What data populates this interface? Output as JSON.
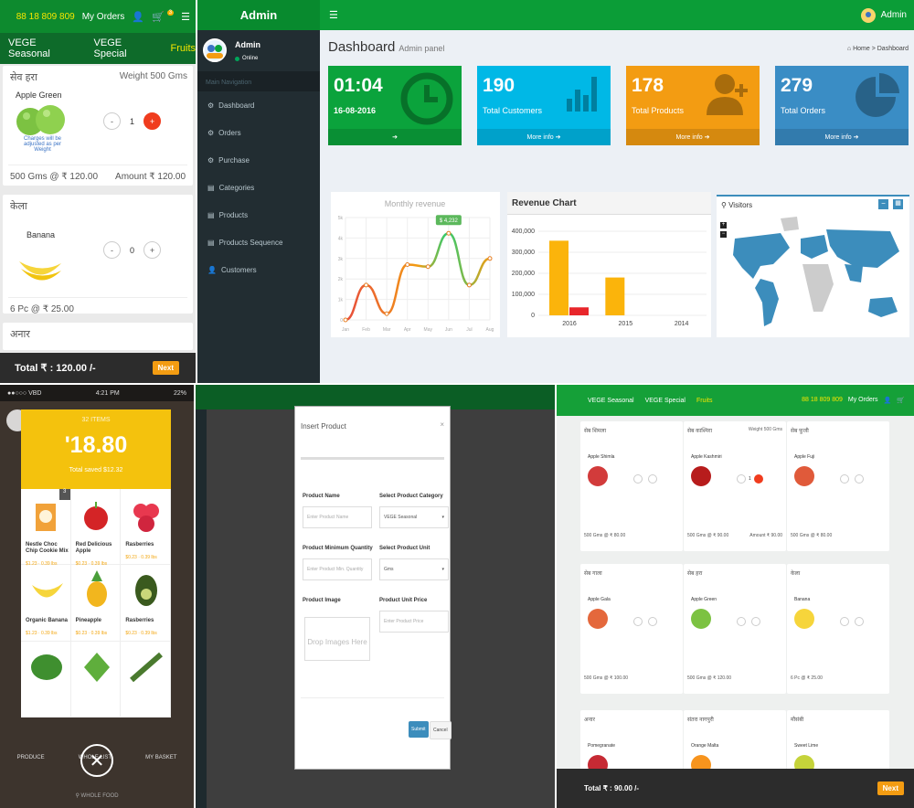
{
  "shop": {
    "phone": "88 18 809 809",
    "my_orders": "My Orders",
    "cart_badge": "3",
    "categories": [
      "VEGE Seasonal",
      "VEGE Special",
      "Fruits"
    ],
    "cards": [
      {
        "name": "सेव हरा",
        "weight": "Weight 500 Gms",
        "product": "Apple Green",
        "note": "Charges will be adjusted as per Weight",
        "qty": "1",
        "price_line": "500 Gms @ ₹ 120.00",
        "amount": "Amount ₹ 120.00"
      },
      {
        "name": "केला",
        "product": "Banana",
        "qty": "0",
        "price_line": "6 Pc @ ₹ 25.00"
      },
      {
        "name": "अनार"
      }
    ],
    "total": "Total ₹ : 120.00 /-",
    "next": "Next"
  },
  "admin": {
    "brand": "Admin",
    "username": "Admin",
    "online": "Online",
    "nav_header": "Main Navigation",
    "nav": [
      "Dashboard",
      "Orders",
      "Purchase",
      "Categories",
      "Products",
      "Products Sequence",
      "Customers"
    ],
    "title": "Dashboard",
    "subtitle": "Admin panel",
    "breadcrumb": "Home > Dashboard",
    "boxes": [
      {
        "value": "01:04",
        "label": "16-08-2016",
        "footer": "➔",
        "color": "#0ba33c"
      },
      {
        "value": "190",
        "label": "Total Customers",
        "footer": "More info ➔",
        "color": "#00b8e6"
      },
      {
        "value": "178",
        "label": "Total Products",
        "footer": "More info ➔",
        "color": "#f39c12"
      },
      {
        "value": "279",
        "label": "Total Orders",
        "footer": "More info ➔",
        "color": "#3a8dc5"
      }
    ],
    "visitors": "Visitors"
  },
  "chart_data": [
    {
      "type": "line",
      "title": "Monthly revenue",
      "x": [
        "Jan",
        "Feb",
        "Mar",
        "Apr",
        "May",
        "Jun",
        "Jul",
        "Aug"
      ],
      "values": [
        0,
        1700,
        300,
        2700,
        2600,
        4232,
        1700,
        3000
      ],
      "y_ticks": [
        "0",
        "1k",
        "2k",
        "3k",
        "4k",
        "5k"
      ],
      "ylim": [
        0,
        5000
      ],
      "annotation": "$ 4,232"
    },
    {
      "type": "bar",
      "title": "Revenue Chart",
      "categories": [
        "2016",
        "2015",
        "2014"
      ],
      "series": [
        {
          "color": "#fbb40b",
          "values": [
            355000,
            180000,
            0
          ]
        },
        {
          "color": "#e8262b",
          "values": [
            38000,
            0,
            0
          ]
        }
      ],
      "y_ticks": [
        "0",
        "100,000",
        "200,000",
        "300,000",
        "400,000"
      ],
      "ylim": [
        0,
        400000
      ]
    }
  ],
  "store": {
    "status_left": "●●○○○ VBD",
    "status_time": "4:21 PM",
    "status_right": "22%",
    "items": "32 ITEMS",
    "price": "'18.80",
    "saved": "Total saved $12.32",
    "products": [
      {
        "name": "Nestle Choc Chip Cookie Mix",
        "price": "$1.23 · 0.39 lbs"
      },
      {
        "name": "Red Delicious Apple",
        "price": "$0.23 · 0.39 lbs"
      },
      {
        "name": "Rasberries",
        "price": "$0.23 · 0.39 lbs"
      },
      {
        "name": "Organic Banana",
        "price": "$1.23 · 0.39 lbs"
      },
      {
        "name": "Pineapple",
        "price": "$0.23 · 0.39 lbs"
      },
      {
        "name": "Rasberries",
        "price": "$0.23 · 0.39 lbs"
      }
    ],
    "bottom": [
      "PRODUCE",
      "WHOLE LIST",
      "MY BASKET"
    ],
    "footer": "WHOLE FOOD"
  },
  "insert": {
    "title": "Insert Product",
    "product_name": "Product Name",
    "product_name_ph": "Enter Product Name",
    "category": "Select Product Category",
    "category_value": "VEGE Seasonal",
    "min_qty": "Product Minimum Quantity",
    "min_qty_ph": "Enter Product Min. Quantity",
    "unit": "Select Product Unit",
    "unit_value": "Gms",
    "image": "Product Image",
    "drop": "Drop Images Here",
    "unit_price": "Product Unit Price",
    "unit_price_ph": "Enter Product Price",
    "submit": "Submit",
    "cancel": "Cancel"
  },
  "tablet": {
    "categories": [
      "VEGE Seasonal",
      "VEGE Special",
      "Fruits"
    ],
    "phone": "88 18 809 809",
    "my_orders": "My Orders",
    "cards": [
      {
        "name": "सेब शिमला",
        "product": "Apple Shimla",
        "price": "500 Gms @ ₹ 80.00",
        "color": "#d23b3b"
      },
      {
        "name": "सेब काश्मिरा",
        "product": "Apple Kashmiri",
        "price": "500 Gms @ ₹ 90.00",
        "amount": "Amount ₹ 90.00",
        "weight": "Weight 500 Gms",
        "qty": "1",
        "color": "#b71c1c"
      },
      {
        "name": "सेब फूजी",
        "product": "Apple Fuji",
        "price": "500 Gms @ ₹ 80.00",
        "color": "#e05a3a"
      },
      {
        "name": "सेब गाला",
        "product": "Apple Gala",
        "price": "500 Gms @ ₹ 100.00",
        "color": "#e4683c"
      },
      {
        "name": "सेब हरा",
        "product": "Apple Green",
        "price": "500 Gms @ ₹ 120.00",
        "color": "#7cc242"
      },
      {
        "name": "केला",
        "product": "Banana",
        "price": "6 Pc @ ₹ 25.00",
        "color": "#f6d53b"
      },
      {
        "name": "अनार",
        "product": "Pomegranate",
        "color": "#c62a34"
      },
      {
        "name": "संतरा नागपुरी",
        "product": "Orange Malta",
        "color": "#f7941d"
      },
      {
        "name": "मौसंबी",
        "product": "Sweet Lime",
        "color": "#c5d33a"
      }
    ],
    "total": "Total ₹ : 90.00 /-",
    "next": "Next"
  }
}
